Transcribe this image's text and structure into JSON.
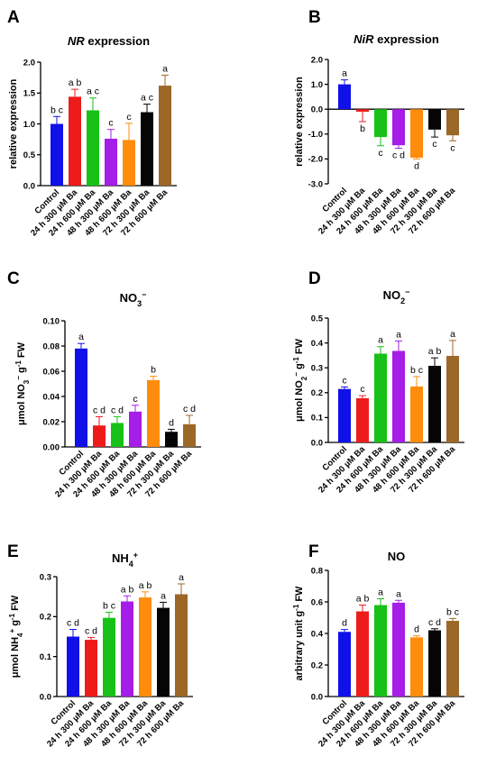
{
  "chart_data": [
    {
      "letter": "A",
      "type": "bar",
      "title_main": "NR",
      "title_rest": " expression",
      "title_italic": true,
      "ylabel": "relative expression",
      "ylim": [
        0,
        2.0
      ],
      "yticks": [
        "0.0",
        "0.5",
        "1.0",
        "1.5",
        "2.0"
      ],
      "ytick_values": [
        0,
        0.5,
        1.0,
        1.5,
        2.0
      ],
      "categories": [
        "Control",
        "24 h 300 µM Ba",
        "24 h 600 µM Ba",
        "48 h 300 µM Ba",
        "48 h 600 µM Ba",
        "72 h 300 µM Ba",
        "72 h 600 µM Ba"
      ],
      "values": [
        1.0,
        1.44,
        1.22,
        0.76,
        0.74,
        1.19,
        1.62
      ],
      "errors": [
        0.12,
        0.12,
        0.2,
        0.15,
        0.27,
        0.13,
        0.17
      ],
      "letters": [
        "b c",
        "a b",
        "a c",
        "c",
        "c",
        "a c",
        "a"
      ]
    },
    {
      "letter": "B",
      "type": "bar",
      "title_main": "NiR",
      "title_rest": " expression",
      "title_italic": true,
      "ylabel": "relative expression",
      "ylim": [
        -3.0,
        2.0
      ],
      "yticks": [
        "-3.0",
        "-2.0",
        "-1.0",
        "0.0",
        "1.0",
        "2.0"
      ],
      "ytick_values": [
        -3,
        -2,
        -1,
        0,
        1,
        2
      ],
      "categories": [
        "Control",
        "24 h 300 µM Ba",
        "24 h 600 µM Ba",
        "48 h 300 µM Ba",
        "48 h 600 µM Ba",
        "72 h 300 µM Ba",
        "72 h 600 µM Ba"
      ],
      "values": [
        1.0,
        -0.1,
        -1.12,
        -1.45,
        -1.95,
        -0.82,
        -1.05
      ],
      "errors": [
        0.18,
        0.4,
        0.35,
        0.12,
        0.05,
        0.3,
        0.22
      ],
      "letters": [
        "a",
        "b",
        "c",
        "c d",
        "d",
        "c",
        "c"
      ]
    },
    {
      "letter": "C",
      "type": "bar",
      "title_main": "NO",
      "title_sub": "3",
      "title_sup": "−",
      "title_italic": false,
      "ylabel": "μmol NO",
      "ylabel_sub": "3",
      "ylabel_sup": "−",
      "ylabel_tail": " g",
      "ylabel_tail_sup": "-1",
      "ylabel_end": " FW",
      "ylim": [
        0,
        0.1
      ],
      "yticks": [
        "0.00",
        "0.02",
        "0.04",
        "0.06",
        "0.08",
        "0.10"
      ],
      "ytick_values": [
        0,
        0.02,
        0.04,
        0.06,
        0.08,
        0.1
      ],
      "categories": [
        "Control",
        "24 h 300 µM Ba",
        "24 h 600 µM Ba",
        "48 h 300 µM Ba",
        "48 h 600 µM Ba",
        "72 h 300 µM Ba",
        "72 h 600 µM Ba"
      ],
      "values": [
        0.078,
        0.017,
        0.019,
        0.028,
        0.053,
        0.012,
        0.018
      ],
      "errors": [
        0.004,
        0.007,
        0.005,
        0.005,
        0.003,
        0.002,
        0.007
      ],
      "letters": [
        "a",
        "c d",
        "c d",
        "c",
        "b",
        "d",
        "c d"
      ]
    },
    {
      "letter": "D",
      "type": "bar",
      "title_main": "NO",
      "title_sub": "2",
      "title_sup": "−",
      "title_italic": false,
      "ylabel": "μmol NO",
      "ylabel_sub": "2",
      "ylabel_sup": "−",
      "ylabel_tail": " g",
      "ylabel_tail_sup": "-1",
      "ylabel_end": " FW",
      "ylim": [
        0,
        0.5
      ],
      "yticks": [
        "0.0",
        "0.1",
        "0.2",
        "0.3",
        "0.4",
        "0.5"
      ],
      "ytick_values": [
        0,
        0.1,
        0.2,
        0.3,
        0.4,
        0.5
      ],
      "categories": [
        "Control",
        "24 h 300 µM Ba",
        "24 h 600 µM Ba",
        "48 h 300 µM Ba",
        "48 h 600 µM Ba",
        "72 h 300 µM Ba",
        "72 h 600 µM Ba"
      ],
      "values": [
        0.215,
        0.178,
        0.357,
        0.368,
        0.225,
        0.308,
        0.348
      ],
      "errors": [
        0.008,
        0.01,
        0.028,
        0.04,
        0.04,
        0.032,
        0.062
      ],
      "letters": [
        "c",
        "c",
        "a",
        "a",
        "b c",
        "a b",
        "a"
      ]
    },
    {
      "letter": "E",
      "type": "bar",
      "title_main": "NH",
      "title_sub": "4",
      "title_sup": "+",
      "title_italic": false,
      "ylabel": "μmol NH",
      "ylabel_sub": "4",
      "ylabel_sup": "+",
      "ylabel_tail": " g",
      "ylabel_tail_sup": "-1",
      "ylabel_end": " FW",
      "ylim": [
        0,
        0.3
      ],
      "yticks": [
        "0.0",
        "0.1",
        "0.2",
        "0.3"
      ],
      "ytick_values": [
        0,
        0.1,
        0.2,
        0.3
      ],
      "categories": [
        "Control",
        "24 h 300 µM Ba",
        "24 h 600 µM Ba",
        "48 h 300 µM Ba",
        "48 h 600 µM Ba",
        "72 h 300 µM Ba",
        "72 h 600 µM Ba"
      ],
      "values": [
        0.15,
        0.142,
        0.197,
        0.238,
        0.248,
        0.222,
        0.256
      ],
      "errors": [
        0.018,
        0.006,
        0.014,
        0.014,
        0.014,
        0.014,
        0.026
      ],
      "letters": [
        "c d",
        "c d",
        "b c",
        "a b",
        "a b",
        "a",
        "a"
      ]
    },
    {
      "letter": "F",
      "type": "bar",
      "title_main": "NO",
      "title_italic": false,
      "ylabel": "arbitrary unit g",
      "ylabel_tail_sup": "-1",
      "ylabel_end": " FW",
      "ylim": [
        0,
        0.8
      ],
      "yticks": [
        "0.0",
        "0.2",
        "0.4",
        "0.6",
        "0.8"
      ],
      "ytick_values": [
        0,
        0.2,
        0.4,
        0.6,
        0.8
      ],
      "categories": [
        "Control",
        "24 h 300 µM Ba",
        "24 h 600 µM Ba",
        "48 h 300 µM Ba",
        "48 h 600 µM Ba",
        "72 h 300 µM Ba",
        "72 h 600 µM Ba"
      ],
      "values": [
        0.41,
        0.54,
        0.58,
        0.595,
        0.375,
        0.42,
        0.48
      ],
      "errors": [
        0.015,
        0.04,
        0.04,
        0.015,
        0.01,
        0.01,
        0.015
      ],
      "letters": [
        "d",
        "a b",
        "a",
        "a",
        "d",
        "c d",
        "b c"
      ]
    }
  ],
  "colors": [
    "#1010e8",
    "#ee1b1b",
    "#17c117",
    "#a51de6",
    "#ff8c0a",
    "#050505",
    "#9c6828"
  ],
  "error_colors": [
    "#1010e8",
    "#ee1b1b",
    "#17c117",
    "#a51de6",
    "#ff8c0a",
    "#050505",
    "#9c6828"
  ]
}
